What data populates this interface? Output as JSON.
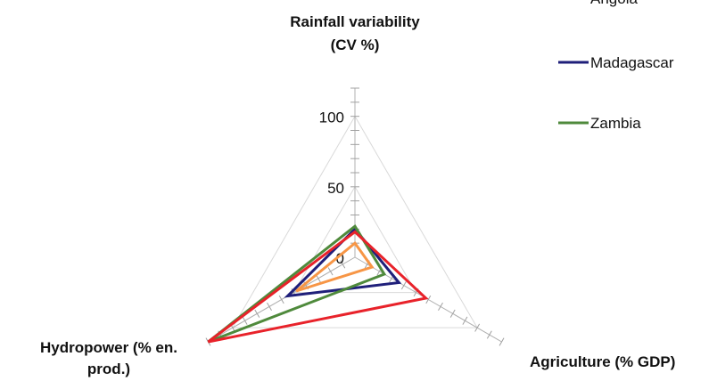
{
  "chart_data": {
    "type": "radar",
    "axes": [
      {
        "name": "rainfall",
        "label_lines": [
          "Rainfall variability",
          "(CV %)"
        ]
      },
      {
        "name": "agriculture",
        "label_lines": [
          "Agriculture (% GDP)"
        ]
      },
      {
        "name": "hydropower",
        "label_lines": [
          "Hydropower (% en.",
          "prod.)"
        ]
      }
    ],
    "range": [
      0,
      120
    ],
    "ticks": [
      0,
      50,
      100
    ],
    "tick_step": 10,
    "grid": true,
    "legend_position": "top-right",
    "series": [
      {
        "name": "Angola",
        "color": "#f79646",
        "values": [
          10,
          14,
          48
        ]
      },
      {
        "name": "Madagascar",
        "color": "#1f1f7a",
        "values": [
          20,
          36,
          55
        ]
      },
      {
        "name": "Zambia",
        "color": "#4f8a3c",
        "values": [
          22,
          24,
          120
        ]
      },
      {
        "name": "",
        "color": "#e8222a",
        "values": [
          18,
          58,
          120
        ]
      }
    ]
  }
}
